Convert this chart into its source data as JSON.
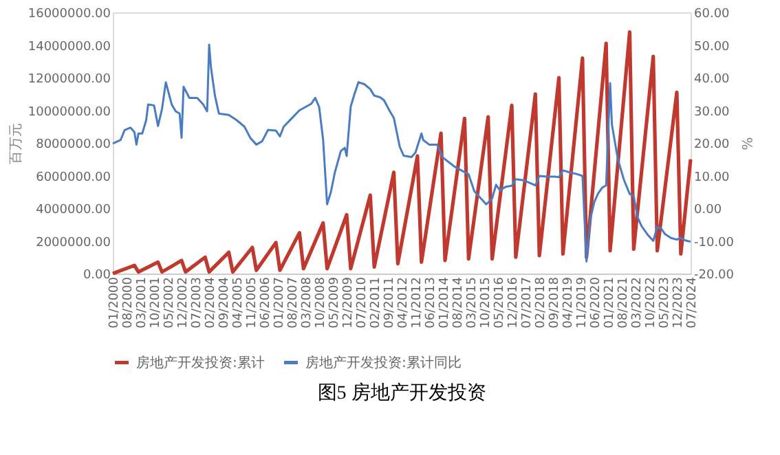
{
  "chart_data": {
    "type": "line",
    "title": "图5  房地产开发投资",
    "ylabel": "百万元",
    "y2label": "%",
    "legend": "bottom",
    "xlim": [
      "2000-01",
      "2024-07"
    ],
    "xticks": [
      {
        "value": "2000-01",
        "label": "01/2000"
      },
      {
        "value": "2000-08",
        "label": "08/2000"
      },
      {
        "value": "2001-03",
        "label": "03/2001"
      },
      {
        "value": "2001-10",
        "label": "10/2001"
      },
      {
        "value": "2002-05",
        "label": "05/2002"
      },
      {
        "value": "2002-12",
        "label": "12/2002"
      },
      {
        "value": "2003-07",
        "label": "07/2003"
      },
      {
        "value": "2004-02",
        "label": "02/2004"
      },
      {
        "value": "2004-09",
        "label": "09/2004"
      },
      {
        "value": "2005-04",
        "label": "04/2005"
      },
      {
        "value": "2005-11",
        "label": "11/2005"
      },
      {
        "value": "2006-06",
        "label": "06/2006"
      },
      {
        "value": "2007-01",
        "label": "01/2007"
      },
      {
        "value": "2007-08",
        "label": "08/2007"
      },
      {
        "value": "2008-03",
        "label": "03/2008"
      },
      {
        "value": "2008-10",
        "label": "10/2008"
      },
      {
        "value": "2009-05",
        "label": "05/2009"
      },
      {
        "value": "2009-12",
        "label": "12/2009"
      },
      {
        "value": "2010-07",
        "label": "07/2010"
      },
      {
        "value": "2011-02",
        "label": "02/2011"
      },
      {
        "value": "2011-09",
        "label": "09/2011"
      },
      {
        "value": "2012-04",
        "label": "04/2012"
      },
      {
        "value": "2012-11",
        "label": "11/2012"
      },
      {
        "value": "2013-06",
        "label": "06/2013"
      },
      {
        "value": "2014-01",
        "label": "01/2014"
      },
      {
        "value": "2014-08",
        "label": "08/2014"
      },
      {
        "value": "2015-03",
        "label": "03/2015"
      },
      {
        "value": "2015-10",
        "label": "10/2015"
      },
      {
        "value": "2016-05",
        "label": "05/2016"
      },
      {
        "value": "2016-12",
        "label": "12/2016"
      },
      {
        "value": "2017-07",
        "label": "07/2017"
      },
      {
        "value": "2018-02",
        "label": "02/2018"
      },
      {
        "value": "2018-09",
        "label": "09/2018"
      },
      {
        "value": "2019-04",
        "label": "04/2019"
      },
      {
        "value": "2019-11",
        "label": "11/2019"
      },
      {
        "value": "2020-06",
        "label": "06/2020"
      },
      {
        "value": "2021-01",
        "label": "01/2021"
      },
      {
        "value": "2021-08",
        "label": "08/2021"
      },
      {
        "value": "2022-03",
        "label": "03/2022"
      },
      {
        "value": "2022-10",
        "label": "10/2022"
      },
      {
        "value": "2023-05",
        "label": "05/2023"
      },
      {
        "value": "2023-12",
        "label": "12/2023"
      },
      {
        "value": "2024-07",
        "label": "07/2024"
      }
    ],
    "ylim": [
      0,
      16000000
    ],
    "yticks": [
      {
        "value": 0,
        "label": "0.00"
      },
      {
        "value": 2000000,
        "label": "2000000.00"
      },
      {
        "value": 4000000,
        "label": "4000000.00"
      },
      {
        "value": 6000000,
        "label": "6000000.00"
      },
      {
        "value": 8000000,
        "label": "8000000.00"
      },
      {
        "value": 10000000,
        "label": "10000000.00"
      },
      {
        "value": 12000000,
        "label": "12000000.00"
      },
      {
        "value": 14000000,
        "label": "14000000.00"
      },
      {
        "value": 16000000,
        "label": "16000000.00"
      }
    ],
    "y2lim": [
      -20,
      60
    ],
    "y2ticks": [
      {
        "value": -20,
        "label": "-20.00"
      },
      {
        "value": -10,
        "label": "-10.00"
      },
      {
        "value": 0,
        "label": "0.00"
      },
      {
        "value": 10,
        "label": "10.00"
      },
      {
        "value": 20,
        "label": "20.00"
      },
      {
        "value": 30,
        "label": "30.00"
      },
      {
        "value": 40,
        "label": "40.00"
      },
      {
        "value": 50,
        "label": "50.00"
      },
      {
        "value": 60,
        "label": "60.00"
      }
    ],
    "series": [
      {
        "name": "房地产开发投资:累计",
        "color": "#c0392f",
        "x": [
          "2000-01",
          "2000-12",
          "2001-02",
          "2001-12",
          "2002-02",
          "2002-12",
          "2003-02",
          "2003-12",
          "2004-02",
          "2004-12",
          "2005-02",
          "2005-12",
          "2006-02",
          "2006-12",
          "2007-02",
          "2007-12",
          "2008-02",
          "2008-12",
          "2009-02",
          "2009-12",
          "2010-02",
          "2010-12",
          "2011-02",
          "2011-12",
          "2012-02",
          "2012-12",
          "2013-02",
          "2013-12",
          "2014-02",
          "2014-12",
          "2015-02",
          "2015-12",
          "2016-02",
          "2016-12",
          "2017-02",
          "2017-12",
          "2018-02",
          "2018-12",
          "2019-02",
          "2019-12",
          "2020-02",
          "2020-12",
          "2021-02",
          "2021-12",
          "2022-02",
          "2022-12",
          "2023-02",
          "2023-12",
          "2024-02",
          "2024-07"
        ],
        "values": [
          0,
          500000,
          100000,
          700000,
          100000,
          800000,
          100000,
          1000000,
          100000,
          1300000,
          100000,
          1600000,
          200000,
          1900000,
          200000,
          2500000,
          300000,
          3100000,
          300000,
          3600000,
          300000,
          4800000,
          400000,
          6200000,
          600000,
          7200000,
          700000,
          8600000,
          800000,
          9500000,
          900000,
          9600000,
          900000,
          10300000,
          1000000,
          11000000,
          1100000,
          12000000,
          1200000,
          13200000,
          1000000,
          14100000,
          1400000,
          14800000,
          1500000,
          13300000,
          1400000,
          11100000,
          1200000,
          7000000
        ]
      },
      {
        "name": "房地产开发投资:累计同比",
        "color": "#4a7cc2",
        "axis": "y2",
        "x": [
          "2000-01",
          "2000-05",
          "2000-07",
          "2000-10",
          "2000-12",
          "2001-01",
          "2001-02",
          "2001-04",
          "2001-06",
          "2001-07",
          "2001-10",
          "2001-12",
          "2002-02",
          "2002-04",
          "2002-07",
          "2002-09",
          "2002-11",
          "2002-12",
          "2003-01",
          "2003-04",
          "2003-08",
          "2003-11",
          "2004-01",
          "2004-02",
          "2004-03",
          "2004-05",
          "2004-07",
          "2004-12",
          "2005-04",
          "2005-08",
          "2005-11",
          "2006-02",
          "2006-05",
          "2006-08",
          "2006-12",
          "2007-02",
          "2007-04",
          "2007-08",
          "2007-12",
          "2008-03",
          "2008-06",
          "2008-08",
          "2008-10",
          "2008-12",
          "2009-02",
          "2009-04",
          "2009-06",
          "2009-09",
          "2009-11",
          "2009-12",
          "2010-02",
          "2010-04",
          "2010-06",
          "2010-09",
          "2010-12",
          "2011-02",
          "2011-05",
          "2011-07",
          "2011-10",
          "2011-12",
          "2012-03",
          "2012-05",
          "2012-09",
          "2012-11",
          "2013-02",
          "2013-03",
          "2013-06",
          "2013-10",
          "2014-01",
          "2014-04",
          "2014-07",
          "2014-11",
          "2015-02",
          "2015-05",
          "2015-08",
          "2015-11",
          "2016-02",
          "2016-04",
          "2016-06",
          "2016-09",
          "2016-12",
          "2017-02",
          "2017-06",
          "2017-11",
          "2017-12",
          "2018-02",
          "2018-06",
          "2018-10",
          "2018-12",
          "2019-02",
          "2019-06",
          "2019-09",
          "2019-12",
          "2020-02",
          "2020-04",
          "2020-06",
          "2020-08",
          "2020-10",
          "2020-12",
          "2021-02",
          "2021-03",
          "2021-06",
          "2021-09",
          "2021-12",
          "2022-02",
          "2022-04",
          "2022-06",
          "2022-09",
          "2022-12",
          "2023-02",
          "2023-04",
          "2023-06",
          "2023-09",
          "2023-12",
          "2024-02",
          "2024-04",
          "2024-06",
          "2024-07"
        ],
        "values": [
          19.8,
          20.9,
          23.9,
          24.7,
          23.3,
          19.5,
          22.9,
          22.9,
          27.0,
          31.8,
          31.5,
          25.2,
          30.4,
          38.6,
          31.8,
          29.7,
          29.0,
          21.6,
          37.2,
          33.8,
          33.8,
          31.8,
          29.7,
          50.1,
          43.0,
          34.5,
          29.0,
          28.6,
          27.0,
          25.0,
          21.5,
          19.5,
          20.5,
          24.0,
          23.8,
          22.0,
          25.0,
          27.5,
          30.0,
          31.0,
          32.0,
          33.8,
          31.0,
          21.0,
          1.2,
          5.0,
          11.0,
          17.5,
          18.5,
          16.0,
          31.1,
          35.0,
          38.6,
          38.0,
          36.5,
          34.5,
          34.0,
          33.1,
          29.7,
          27.7,
          18.9,
          16.1,
          15.7,
          17.1,
          22.9,
          20.9,
          19.5,
          19.5,
          15.5,
          14.1,
          12.7,
          11.4,
          10.4,
          5.2,
          3.2,
          1.2,
          3.0,
          7.2,
          5.5,
          6.6,
          6.9,
          8.9,
          8.6,
          7.3,
          7.0,
          9.9,
          9.7,
          9.7,
          9.5,
          11.6,
          10.9,
          10.5,
          9.9,
          -16.3,
          -3.3,
          1.9,
          4.6,
          6.3,
          7.0,
          38.3,
          25.6,
          15.0,
          8.8,
          4.4,
          3.7,
          -2.7,
          -5.4,
          -8.0,
          -10.0,
          -5.7,
          -6.2,
          -7.9,
          -9.1,
          -9.6,
          -9.0,
          -9.8,
          -10.1,
          -10.2
        ]
      }
    ]
  }
}
